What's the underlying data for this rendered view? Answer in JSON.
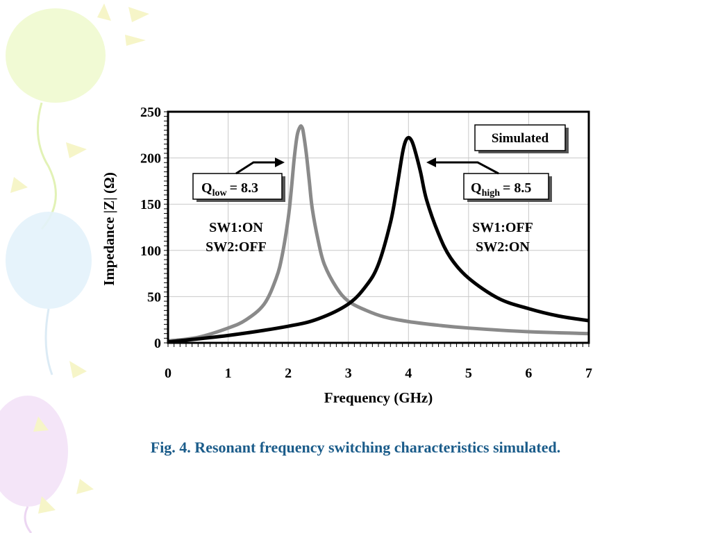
{
  "slide": {
    "caption": "Fig. 4. Resonant frequency switching characteristics simulated.",
    "background_decoration": "pastel balloons",
    "colors": {
      "caption": "#1b5c8a",
      "series_grey": "#8a8a8a",
      "series_black": "#000000"
    }
  },
  "chart_data": {
    "type": "line",
    "xlabel": "Frequency (GHz)",
    "ylabel": "Impedance |Z| (Ω)",
    "xlim": [
      0,
      7
    ],
    "ylim": [
      0,
      250
    ],
    "xticks": [
      0,
      1,
      2,
      3,
      4,
      5,
      6,
      7
    ],
    "yticks": [
      0,
      50,
      100,
      150,
      200,
      250
    ],
    "grid": true,
    "series": [
      {
        "color": "#8a8a8a",
        "x": [
          0,
          0.5,
          1.0,
          1.3,
          1.6,
          1.8,
          1.9,
          2.0,
          2.05,
          2.1,
          2.15,
          2.2,
          2.23,
          2.25,
          2.3,
          2.35,
          2.4,
          2.5,
          2.6,
          2.8,
          3.0,
          3.3,
          3.6,
          4.0,
          4.5,
          5.0,
          6.0,
          7.0
        ],
        "y": [
          2,
          6,
          16,
          25,
          42,
          70,
          95,
          135,
          165,
          200,
          225,
          234,
          233,
          228,
          205,
          175,
          145,
          110,
          85,
          60,
          45,
          35,
          28,
          23,
          19,
          16,
          12,
          10
        ]
      },
      {
        "color": "#000000",
        "x": [
          0,
          1.0,
          2.0,
          2.5,
          3.0,
          3.3,
          3.5,
          3.7,
          3.8,
          3.9,
          3.95,
          4.0,
          4.05,
          4.1,
          4.2,
          4.3,
          4.5,
          4.7,
          5.0,
          5.5,
          6.0,
          6.5,
          7.0
        ],
        "y": [
          1,
          8,
          18,
          26,
          42,
          62,
          85,
          130,
          165,
          205,
          218,
          222,
          219,
          210,
          185,
          155,
          118,
          92,
          70,
          48,
          37,
          29,
          24
        ]
      }
    ],
    "annotations": {
      "legend_box": "Simulated",
      "q_low": {
        "q": "Q",
        "sub": "low",
        "value": "= 8.3"
      },
      "q_high": {
        "q": "Q",
        "sub": "high",
        "value": "= 8.5"
      },
      "left_state": [
        "SW1:ON",
        "SW2:OFF"
      ],
      "right_state": [
        "SW1:OFF",
        "SW2:ON"
      ]
    }
  }
}
